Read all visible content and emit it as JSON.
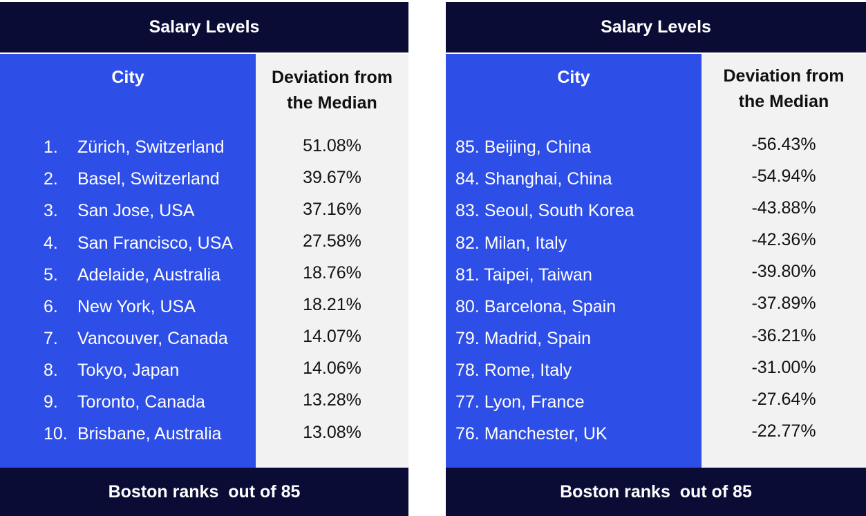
{
  "panels": [
    {
      "title": "Salary Levels",
      "city_header": "City",
      "deviation_header": "Deviation from the Median",
      "rows": [
        {
          "rank": "1.",
          "city": "Zürich, Switzerland",
          "deviation": "51.08%"
        },
        {
          "rank": "2.",
          "city": "Basel, Switzerland",
          "deviation": "39.67%"
        },
        {
          "rank": "3.",
          "city": "San Jose, USA",
          "deviation": "37.16%"
        },
        {
          "rank": "4.",
          "city": "San Francisco, USA",
          "deviation": "27.58%"
        },
        {
          "rank": "5.",
          "city": "Adelaide, Australia",
          "deviation": "18.76%"
        },
        {
          "rank": "6.",
          "city": "New York, USA",
          "deviation": "18.21%"
        },
        {
          "rank": "7.",
          "city": "Vancouver, Canada",
          "deviation": "14.07%"
        },
        {
          "rank": "8.",
          "city": "Tokyo, Japan",
          "deviation": "14.06%"
        },
        {
          "rank": "9.",
          "city": "Toronto, Canada",
          "deviation": "13.28%"
        },
        {
          "rank": "10.",
          "city": "Brisbane, Australia",
          "deviation": "13.08%"
        }
      ],
      "footer": "Boston ranks  out of 85"
    },
    {
      "title": "Salary Levels",
      "city_header": "City",
      "deviation_header": "Deviation from the Median",
      "rows": [
        {
          "rank": "85.",
          "city": "Beijing, China",
          "deviation": "-56.43%"
        },
        {
          "rank": "84.",
          "city": "Shanghai, China",
          "deviation": "-54.94%"
        },
        {
          "rank": "83.",
          "city": "Seoul, South Korea",
          "deviation": "-43.88%"
        },
        {
          "rank": "82.",
          "city": "Milan, Italy",
          "deviation": "-42.36%"
        },
        {
          "rank": "81.",
          "city": "Taipei, Taiwan",
          "deviation": "-39.80%"
        },
        {
          "rank": "80.",
          "city": "Barcelona, Spain",
          "deviation": "-37.89%"
        },
        {
          "rank": "79.",
          "city": "Madrid, Spain",
          "deviation": "-36.21%"
        },
        {
          "rank": "78.",
          "city": "Rome, Italy",
          "deviation": "-31.00%"
        },
        {
          "rank": "77.",
          "city": "Lyon, France",
          "deviation": "-27.64%"
        },
        {
          "rank": "76.",
          "city": "Manchester, UK",
          "deviation": "-22.77%"
        }
      ],
      "footer": "Boston ranks  out of 85"
    }
  ],
  "colors": {
    "header_bg": "#0b0c35",
    "city_col_bg": "#2e4ee8",
    "deviation_col_bg": "#f2f2f2"
  }
}
